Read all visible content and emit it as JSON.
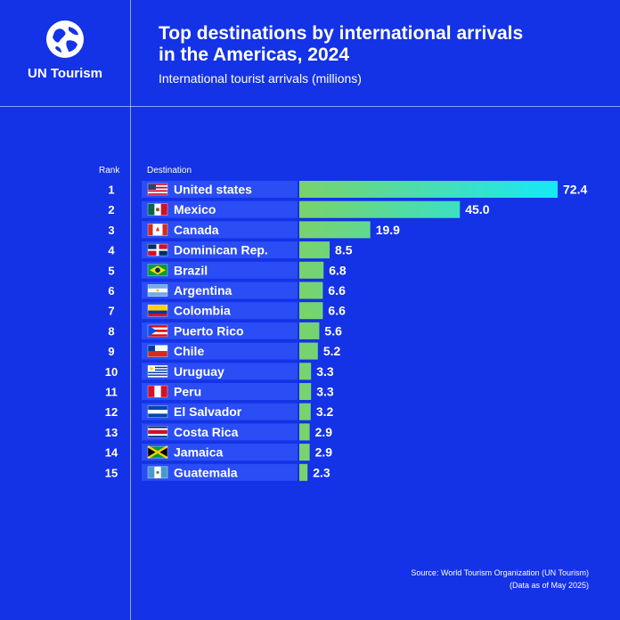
{
  "brand": {
    "name": "UN Tourism",
    "logo_icon": "globe-icon"
  },
  "header": {
    "title_line1": "Top destinations by international arrivals",
    "title_line2": "in the Americas, 2024",
    "subtitle": "International tourist arrivals (millions)"
  },
  "columns": {
    "rank": "Rank",
    "destination": "Destination"
  },
  "source": {
    "line1": "Source: World Tourism Organization (UN Tourism)",
    "line2": "(Data as of May 2025)"
  },
  "colors": {
    "background": "#1432e6",
    "bar_start": "#7ad36a",
    "bar_end": "#16e8f8",
    "row": "#2a4df5"
  },
  "chart_data": {
    "type": "bar",
    "orientation": "horizontal",
    "title": "Top destinations by international arrivals in the Americas, 2024",
    "xlabel": "International tourist arrivals (millions)",
    "ylabel": "Destination",
    "xlim": [
      0,
      72.4
    ],
    "categories": [
      "United states",
      "Mexico",
      "Canada",
      "Dominican Rep.",
      "Brazil",
      "Argentina",
      "Colombia",
      "Puerto Rico",
      "Chile",
      "Uruguay",
      "Peru",
      "El Salvador",
      "Costa Rica",
      "Jamaica",
      "Guatemala"
    ],
    "ranks": [
      "1",
      "2",
      "3",
      "4",
      "5",
      "6",
      "7",
      "8",
      "9",
      "10",
      "11",
      "12",
      "13",
      "14",
      "15"
    ],
    "values": [
      72.4,
      45.0,
      19.9,
      8.5,
      6.8,
      6.6,
      6.6,
      5.6,
      5.2,
      3.3,
      3.3,
      3.2,
      2.9,
      2.9,
      2.3
    ],
    "labels": [
      "72.4",
      "45.0",
      "19.9",
      "8.5",
      "6.8",
      "6.6",
      "6.6",
      "5.6",
      "5.2",
      "3.3",
      "3.3",
      "3.2",
      "2.9",
      "2.9",
      "2.3"
    ],
    "flags": [
      "us",
      "mx",
      "ca",
      "do",
      "br",
      "ar",
      "co",
      "pr",
      "cl",
      "uy",
      "pe",
      "sv",
      "cr",
      "jm",
      "gt"
    ]
  }
}
